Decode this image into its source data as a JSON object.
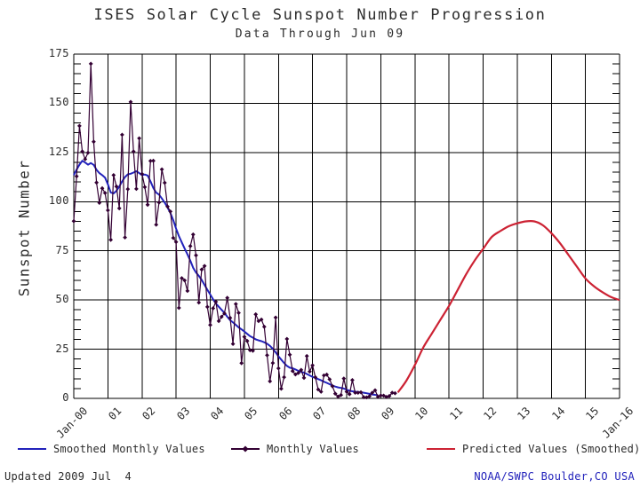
{
  "page": {
    "footer_left": "Updated 2009 Jul  4",
    "footer_right": "NOAA/SWPC Boulder,CO USA"
  },
  "colors": {
    "smoothed": "#2222bb",
    "monthly": "#330033",
    "predicted": "#cc2233",
    "grid": "#000000",
    "text": "#2b2b2b",
    "footer_right_text": "#2222bb"
  },
  "chart_data": {
    "type": "line",
    "title": "ISES Solar Cycle Sunspot Number Progression",
    "subtitle": "Data Through Jun 09",
    "xlabel": "",
    "ylabel": "Sunspot Number",
    "ylim": [
      0,
      175
    ],
    "xlim": [
      2000,
      2016
    ],
    "grid": true,
    "legend_position": "bottom",
    "y_ticks": [
      0,
      25,
      50,
      75,
      100,
      125,
      150,
      175
    ],
    "y_minor_step": 5,
    "x_ticks": [
      {
        "t": 2000,
        "label": "Jan-00"
      },
      {
        "t": 2001,
        "label": "01"
      },
      {
        "t": 2002,
        "label": "02"
      },
      {
        "t": 2003,
        "label": "03"
      },
      {
        "t": 2004,
        "label": "04"
      },
      {
        "t": 2005,
        "label": "05"
      },
      {
        "t": 2006,
        "label": "06"
      },
      {
        "t": 2007,
        "label": "07"
      },
      {
        "t": 2008,
        "label": "08"
      },
      {
        "t": 2009,
        "label": "09"
      },
      {
        "t": 2010,
        "label": "10"
      },
      {
        "t": 2011,
        "label": "11"
      },
      {
        "t": 2012,
        "label": "12"
      },
      {
        "t": 2013,
        "label": "13"
      },
      {
        "t": 2014,
        "label": "14"
      },
      {
        "t": 2015,
        "label": "15"
      },
      {
        "t": 2016,
        "label": "Jan-16"
      }
    ],
    "series": [
      {
        "name": "Smoothed Monthly Values",
        "style": "line",
        "color": "#2222bb",
        "x_start": 2000.0,
        "x_step_months": 1,
        "values": [
          113.5,
          116.3,
          118.8,
          120.8,
          119.9,
          118.8,
          119.6,
          118.7,
          116.2,
          114.5,
          113.5,
          112.2,
          108.8,
          104.7,
          104.2,
          105.5,
          107.7,
          110.3,
          112.5,
          113.9,
          114.2,
          114.8,
          115.5,
          114.5,
          113.5,
          113.8,
          113.3,
          110.3,
          107.0,
          104.6,
          103.6,
          101.6,
          99.5,
          97.0,
          94.2,
          90.6,
          86.3,
          82.5,
          79.3,
          76.2,
          73.2,
          70.0,
          66.4,
          64.0,
          62.3,
          60.2,
          57.7,
          55.2,
          52.8,
          50.4,
          48.2,
          46.6,
          45.0,
          43.5,
          41.5,
          39.8,
          38.6,
          37.4,
          36.1,
          35.1,
          34.0,
          32.8,
          31.6,
          30.9,
          30.0,
          29.5,
          29.1,
          28.5,
          27.8,
          26.7,
          25.2,
          23.4,
          21.4,
          19.7,
          18.0,
          16.5,
          15.6,
          15.3,
          14.7,
          14.0,
          13.5,
          13.1,
          12.4,
          11.7,
          10.9,
          10.4,
          9.8,
          9.2,
          8.5,
          7.9,
          7.2,
          6.5,
          6.0,
          5.6,
          5.3,
          5.0,
          4.4,
          3.9,
          3.6,
          3.4,
          3.3,
          3.1,
          2.9,
          2.6,
          2.3,
          2.0,
          1.8,
          1.7
        ]
      },
      {
        "name": "Monthly Values",
        "style": "line+diamond",
        "color": "#330033",
        "x_start": 2000.0,
        "x_step_months": 1,
        "values": [
          90.1,
          112.9,
          138.5,
          125.5,
          121.6,
          124.9,
          170.1,
          130.5,
          109.7,
          99.4,
          106.8,
          104.4,
          95.6,
          80.6,
          113.5,
          107.7,
          96.6,
          134.0,
          81.8,
          106.4,
          150.7,
          125.5,
          106.5,
          132.2,
          114.1,
          107.4,
          98.4,
          120.7,
          120.8,
          88.3,
          99.6,
          116.4,
          109.6,
          97.5,
          95.0,
          81.6,
          79.5,
          46.0,
          61.1,
          60.0,
          54.6,
          77.4,
          83.3,
          72.7,
          48.7,
          65.5,
          67.3,
          46.5,
          37.3,
          45.8,
          49.1,
          39.3,
          41.5,
          43.2,
          51.1,
          40.9,
          27.7,
          48.0,
          43.5,
          17.9,
          31.3,
          29.2,
          24.5,
          24.2,
          42.7,
          39.3,
          40.1,
          36.4,
          21.9,
          8.7,
          18.0,
          41.1,
          15.3,
          4.9,
          10.8,
          30.2,
          22.2,
          13.9,
          12.2,
          12.9,
          14.5,
          10.4,
          21.5,
          13.6,
          16.8,
          10.7,
          4.5,
          3.4,
          11.7,
          12.1,
          9.7,
          6.2,
          2.4,
          0.9,
          1.7,
          10.1,
          3.4,
          2.1,
          9.3,
          2.9,
          2.9,
          3.1,
          0.6,
          0.5,
          1.1,
          2.9,
          4.1,
          0.8,
          1.5,
          1.4,
          0.7,
          1.2,
          2.9,
          2.6
        ]
      },
      {
        "name": "Predicted Values (Smoothed)",
        "style": "line",
        "color": "#cc2233",
        "points": [
          [
            2009.5,
            3
          ],
          [
            2009.75,
            9
          ],
          [
            2010.0,
            17
          ],
          [
            2010.25,
            26
          ],
          [
            2010.5,
            33
          ],
          [
            2010.75,
            40
          ],
          [
            2011.0,
            47
          ],
          [
            2011.25,
            55
          ],
          [
            2011.5,
            63
          ],
          [
            2011.75,
            70
          ],
          [
            2012.0,
            76
          ],
          [
            2012.25,
            82
          ],
          [
            2012.5,
            85
          ],
          [
            2012.75,
            87.5
          ],
          [
            2013.0,
            89
          ],
          [
            2013.25,
            90
          ],
          [
            2013.5,
            90
          ],
          [
            2013.75,
            88
          ],
          [
            2014.0,
            84
          ],
          [
            2014.25,
            79
          ],
          [
            2014.5,
            73
          ],
          [
            2014.75,
            67
          ],
          [
            2015.0,
            61
          ],
          [
            2015.25,
            57
          ],
          [
            2015.5,
            54
          ],
          [
            2015.75,
            51.5
          ],
          [
            2016.0,
            50
          ]
        ]
      }
    ]
  }
}
